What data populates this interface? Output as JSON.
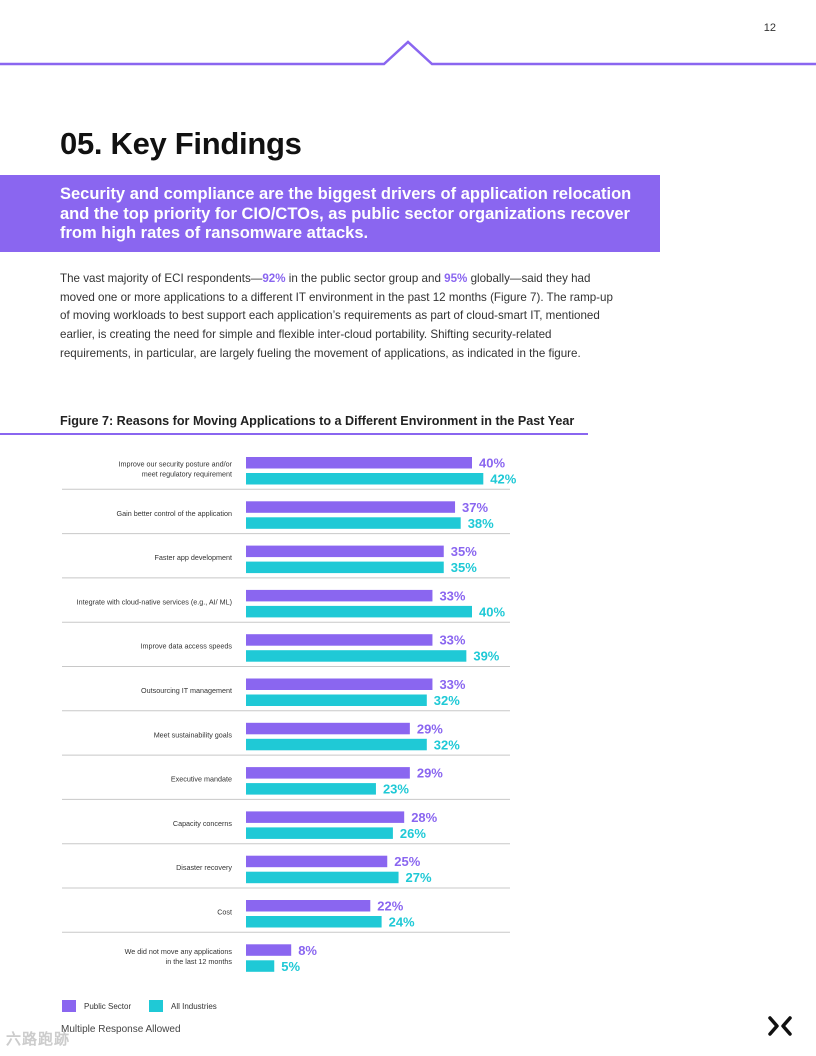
{
  "page": {
    "number": "12",
    "title": "05. Key Findings",
    "banner": "Security and compliance are the biggest drivers of application relocation and the top priority for CIO/CTOs, as public sector organizations recover from high rates of ransomware attacks.",
    "body": {
      "p1": "The vast majority of ECI respondents—",
      "stat_public": "92%",
      "p2": " in the public sector group and ",
      "stat_global": "95%",
      "p3": " globally—said they had moved one or more applications to a different IT environment in the past 12 months (Figure 7). The ramp-up of moving workloads to best support each application’s requirements as part of cloud-smart IT, mentioned earlier, is creating the need for simple and flexible inter-cloud portability. Shifting security-related requirements, in particular, are largely fueling the movement of applications, as indicated in the figure."
    },
    "footnote": "Multiple Response Allowed",
    "watermark": "六路跑跡"
  },
  "colors": {
    "accent": "#8a66f0",
    "teal": "#1fc9d6",
    "rule": "#c8c8c8"
  },
  "chart_data": {
    "type": "bar",
    "orientation": "horizontal",
    "title": "Figure 7: Reasons for Moving Applications to a Different Environment in the Past Year",
    "value_suffix": "%",
    "xlim": [
      0,
      40
    ],
    "grid": false,
    "legend_position": "bottom-left",
    "categories": [
      [
        "Improve our security posture and/or",
        "meet regulatory requirement"
      ],
      [
        "Gain better control of the application"
      ],
      [
        "Faster app development"
      ],
      [
        "Integrate with cloud-native services (e.g., AI/ ML)"
      ],
      [
        "Improve data access speeds"
      ],
      [
        "Outsourcing IT management"
      ],
      [
        "Meet sustainability goals"
      ],
      [
        "Executive mandate"
      ],
      [
        "Capacity concerns"
      ],
      [
        "Disaster recovery"
      ],
      [
        "Cost"
      ],
      [
        "We did not move any applications",
        "in the last 12 months"
      ]
    ],
    "series": [
      {
        "name": "Public Sector",
        "color": "#8a66f0",
        "values": [
          40,
          37,
          35,
          33,
          33,
          33,
          29,
          29,
          28,
          25,
          22,
          8
        ]
      },
      {
        "name": "All Industries",
        "color": "#1fc9d6",
        "values": [
          42,
          38,
          35,
          40,
          39,
          32,
          32,
          23,
          26,
          27,
          24,
          5
        ]
      }
    ]
  }
}
